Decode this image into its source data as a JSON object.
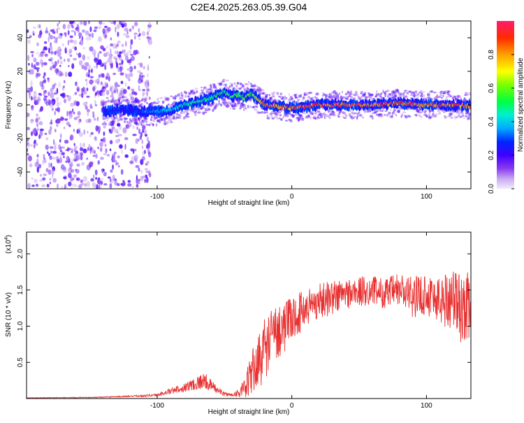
{
  "title": "C2E4.2025.263.05.39.G04",
  "chart_data": [
    {
      "type": "heatmap",
      "name": "spectrogram",
      "xlabel": "Height of straight line (km)",
      "ylabel": "Frequency (Hz)",
      "xlim": [
        -197,
        133
      ],
      "ylim": [
        -50,
        50
      ],
      "xticks": [
        -100,
        0,
        100
      ],
      "yticks": [
        -40,
        -20,
        0,
        20,
        40
      ],
      "colorbar": {
        "label": "Normalized spectral amplitude",
        "range": [
          0.0,
          1.0
        ],
        "ticks": [
          "0.0",
          "0.2",
          "0.4",
          "0.6",
          "0.8"
        ]
      },
      "ridge": {
        "x": [
          -140,
          -125,
          -110,
          -100,
          -90,
          -80,
          -70,
          -60,
          -55,
          -50,
          -45,
          -40,
          -35,
          -30,
          -25,
          -20,
          -10,
          0,
          20,
          40,
          60,
          80,
          100,
          120,
          133
        ],
        "freq_hz": [
          -4,
          -3,
          -4,
          -4,
          -3,
          0,
          2,
          4,
          6,
          8,
          5,
          6,
          4,
          7,
          3,
          0,
          -1,
          -2,
          0,
          0,
          0,
          1,
          0,
          0,
          -1
        ],
        "amplitude": [
          0.3,
          0.25,
          0.35,
          0.4,
          0.45,
          0.5,
          0.55,
          0.5,
          0.6,
          0.55,
          0.6,
          0.6,
          0.65,
          0.6,
          0.8,
          0.95,
          0.9,
          0.95,
          0.98,
          0.98,
          0.98,
          0.98,
          0.97,
          0.95,
          0.9
        ]
      },
      "noise_region": {
        "x_min": -197,
        "x_max": -105,
        "amplitude": 0.1
      }
    },
    {
      "type": "line",
      "name": "snr",
      "xlabel": "Height of straight line (km)",
      "ylabel": "SNR (10 * v/v)",
      "scale_label": "(x10",
      "scale_exponent": "4",
      "xlim": [
        -197,
        133
      ],
      "ylim": [
        0,
        2.3
      ],
      "xticks": [
        -100,
        0,
        100
      ],
      "yticks": [
        0.5,
        1.0,
        1.5,
        2.0
      ],
      "ytick_labels": [
        "0.5",
        "1.0",
        "1.5",
        "2.0"
      ],
      "color": "#e83030",
      "series": [
        {
          "name": "SNR",
          "x": [
            -197,
            -150,
            -120,
            -100,
            -90,
            -80,
            -70,
            -65,
            -60,
            -55,
            -50,
            -45,
            -40,
            -35,
            -30,
            -25,
            -20,
            -15,
            -10,
            -5,
            0,
            10,
            20,
            30,
            40,
            50,
            60,
            70,
            80,
            90,
            100,
            110,
            120,
            125,
            133
          ],
          "mean": [
            0.01,
            0.015,
            0.03,
            0.05,
            0.1,
            0.15,
            0.22,
            0.25,
            0.18,
            0.12,
            0.06,
            0.05,
            0.08,
            0.12,
            0.35,
            0.5,
            0.7,
            0.85,
            0.95,
            1.0,
            1.1,
            1.25,
            1.35,
            1.4,
            1.45,
            1.47,
            1.5,
            1.45,
            1.5,
            1.4,
            1.45,
            1.35,
            1.4,
            1.25,
            1.3
          ],
          "amp": [
            0.003,
            0.005,
            0.01,
            0.02,
            0.04,
            0.06,
            0.1,
            0.12,
            0.08,
            0.05,
            0.03,
            0.02,
            0.06,
            0.15,
            0.3,
            0.4,
            0.45,
            0.4,
            0.4,
            0.35,
            0.3,
            0.28,
            0.25,
            0.25,
            0.22,
            0.22,
            0.2,
            0.22,
            0.25,
            0.28,
            0.3,
            0.35,
            0.45,
            0.5,
            0.45
          ]
        }
      ]
    }
  ]
}
